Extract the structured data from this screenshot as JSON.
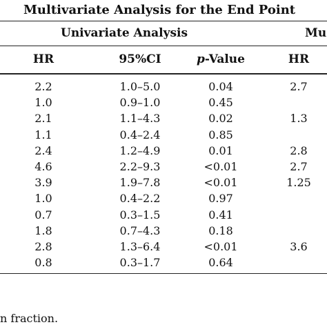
{
  "title": "Multivariate Analysis for the End Point",
  "groups": {
    "univariate": "Univariate Analysis",
    "multivariate_partial": "Mu"
  },
  "columns": {
    "hr": "HR",
    "ci": "95%CI",
    "p_italic": "p",
    "p_rest": "-Value",
    "mhr": "HR"
  },
  "rows": [
    {
      "hr": "2.2",
      "ci": "1.0–5.0",
      "p": "0.04",
      "mhr": "2.7"
    },
    {
      "hr": "1.0",
      "ci": "0.9–1.0",
      "p": "0.45",
      "mhr": ""
    },
    {
      "hr": "2.1",
      "ci": "1.1–4.3",
      "p": "0.02",
      "mhr": "1.3"
    },
    {
      "hr": "1.1",
      "ci": "0.4–2.4",
      "p": "0.85",
      "mhr": ""
    },
    {
      "hr": "2.4",
      "ci": "1.2–4.9",
      "p": "0.01",
      "mhr": "2.8"
    },
    {
      "hr": "4.6",
      "ci": "2.2–9.3",
      "p": "<0.01",
      "mhr": "2.7"
    },
    {
      "hr": "3.9",
      "ci": "1.9–7.8",
      "p": "<0.01",
      "mhr": "1.25"
    },
    {
      "hr": "1.0",
      "ci": "0.4–2.2",
      "p": "0.97",
      "mhr": ""
    },
    {
      "hr": "0.7",
      "ci": "0.3–1.5",
      "p": "0.41",
      "mhr": ""
    },
    {
      "hr": "1.8",
      "ci": "0.7–4.3",
      "p": "0.18",
      "mhr": ""
    },
    {
      "hr": "2.8",
      "ci": "1.3–6.4",
      "p": "<0.01",
      "mhr": "3.6"
    },
    {
      "hr": "0.8",
      "ci": "0.3–1.7",
      "p": "0.64",
      "mhr": ""
    }
  ],
  "footnote": "n fraction."
}
